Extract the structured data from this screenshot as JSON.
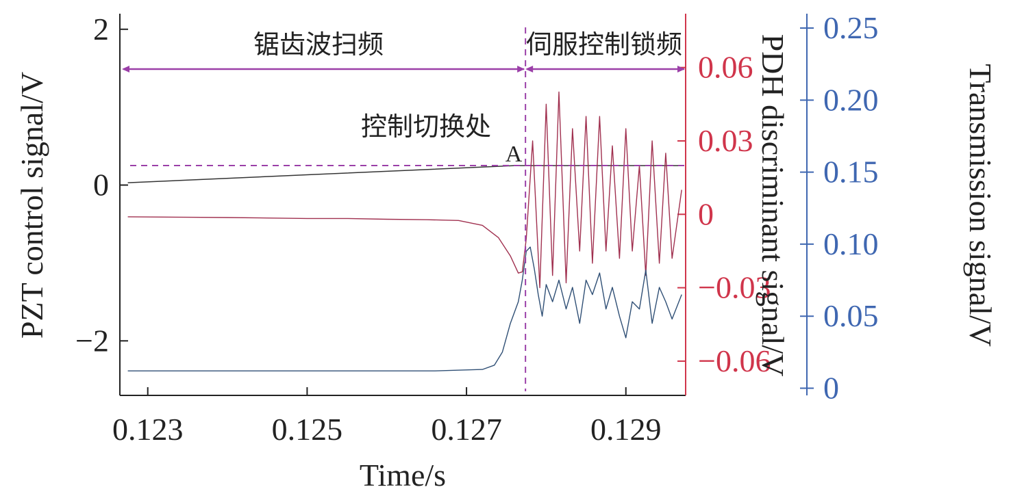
{
  "colors": {
    "axis": "#222222",
    "pdh": "#d0354b",
    "transmission": "#3f67b1",
    "marker": "#9b3fa8",
    "pzt_trace": "#333333",
    "pdh_trace": "#a0304f",
    "trans_trace": "#2f4f75"
  },
  "chart_data": {
    "type": "line",
    "xlabel": "Time/s",
    "ylabel_left": "PZT control signal/V",
    "ylabel_right1": "PDH discriminant signal/V",
    "ylabel_right2": "Transmission signal/V",
    "xlim": [
      0.12265,
      0.12975
    ],
    "ylim_left": [
      -2.7,
      2.2
    ],
    "ylim_right1": [
      -0.074,
      0.082
    ],
    "ylim_right2": [
      -0.005,
      0.26
    ],
    "x_ticks": [
      "0.123",
      "0.125",
      "0.127",
      "0.129"
    ],
    "x_tick_values": [
      0.123,
      0.125,
      0.127,
      0.129
    ],
    "y_left_ticks": [
      "−2",
      "0",
      "2"
    ],
    "y_left_tick_values": [
      -2,
      0,
      2
    ],
    "y_right1_ticks": [
      "−0.06",
      "−0.03",
      "0",
      "0.03",
      "0.06"
    ],
    "y_right1_tick_values": [
      -0.06,
      -0.03,
      0,
      0.03,
      0.06
    ],
    "y_right2_ticks": [
      "0",
      "0.05",
      "0.10",
      "0.15",
      "0.20",
      "0.25"
    ],
    "y_right2_tick_values": [
      0,
      0.05,
      0.1,
      0.15,
      0.2,
      0.25
    ],
    "annotations": {
      "sweep_label": "锯齿波扫频",
      "lock_label": "伺服控制锁频",
      "switch_label": "控制切换处",
      "point_label": "A"
    },
    "switch_time": 0.12774,
    "hold_level_left": 0.25,
    "series": [
      {
        "name": "PZT control signal",
        "axis": "left",
        "x": [
          0.12275,
          0.1276,
          0.12774,
          0.1297
        ],
        "y": [
          0.03,
          0.25,
          0.25,
          0.25
        ]
      },
      {
        "name": "PDH discriminant signal",
        "axis": "right1",
        "x": [
          0.12275,
          0.1235,
          0.124,
          0.1245,
          0.125,
          0.1255,
          0.126,
          0.1265,
          0.1269,
          0.1272,
          0.1274,
          0.12755,
          0.12765,
          0.1277,
          0.12775,
          0.12783,
          0.12792,
          0.128,
          0.12808,
          0.12816,
          0.12825,
          0.12833,
          0.12842,
          0.1285,
          0.12858,
          0.12867,
          0.12875,
          0.12883,
          0.12892,
          0.129,
          0.12908,
          0.12917,
          0.12925,
          0.12933,
          0.12942,
          0.1295,
          0.12958,
          0.1297
        ],
        "y": [
          -0.001,
          -0.0012,
          -0.0013,
          -0.0015,
          -0.0017,
          -0.0017,
          -0.002,
          -0.0022,
          -0.0025,
          -0.0045,
          -0.0095,
          -0.017,
          -0.024,
          -0.0235,
          -0.01,
          0.03,
          -0.03,
          0.045,
          -0.025,
          0.05,
          -0.028,
          0.035,
          -0.015,
          0.04,
          -0.02,
          0.04,
          -0.015,
          0.028,
          -0.018,
          0.035,
          -0.015,
          0.02,
          -0.025,
          0.03,
          -0.02,
          0.025,
          -0.018,
          0.01
        ]
      },
      {
        "name": "Transmission signal",
        "axis": "right2",
        "x": [
          0.12275,
          0.1266,
          0.1272,
          0.12735,
          0.12745,
          0.12755,
          0.12765,
          0.1277,
          0.12775,
          0.1278,
          0.12785,
          0.1279,
          0.12795,
          0.128,
          0.12808,
          0.12816,
          0.12825,
          0.12833,
          0.12842,
          0.1285,
          0.12858,
          0.12867,
          0.12875,
          0.12883,
          0.12892,
          0.129,
          0.12908,
          0.12917,
          0.12925,
          0.12933,
          0.12942,
          0.1295,
          0.12958,
          0.1297
        ],
        "y": [
          0.012,
          0.012,
          0.013,
          0.016,
          0.025,
          0.045,
          0.06,
          0.075,
          0.095,
          0.098,
          0.083,
          0.065,
          0.05,
          0.072,
          0.06,
          0.075,
          0.055,
          0.07,
          0.045,
          0.075,
          0.065,
          0.08,
          0.055,
          0.07,
          0.05,
          0.035,
          0.06,
          0.055,
          0.082,
          0.045,
          0.07,
          0.06,
          0.048,
          0.065
        ]
      }
    ]
  }
}
